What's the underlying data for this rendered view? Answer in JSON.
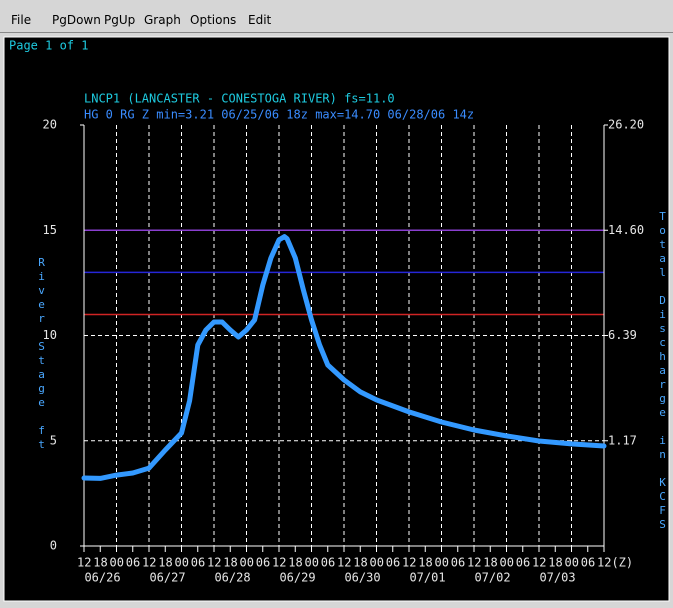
{
  "menu": [
    "File",
    "PgDown",
    "PgUp",
    "Graph",
    "Options",
    "Edit"
  ],
  "page_label": "Page 1 of 1",
  "chart_data": {
    "type": "line",
    "title": "LNCP1 (LANCASTER - CONESTOGA RIVER) fs=11.0",
    "subtitle": "HG 0 RG Z min=3.21 06/25/06 18z max=14.70 06/28/06 14z",
    "ylabel": "River Stage ft",
    "y2label": "Total Discharge in KCFS",
    "ylim": [
      0,
      20
    ],
    "yticks": [
      0,
      5,
      10,
      15,
      20
    ],
    "y2ticks": [
      {
        "value": 1.17,
        "label": "1.17"
      },
      {
        "value": 6.39,
        "label": "6.39"
      },
      {
        "value": 14.6,
        "label": "14.60"
      },
      {
        "value": 26.2,
        "label": "26.20"
      }
    ],
    "xlim": [
      "06/25 12",
      "07/03 12"
    ],
    "xticks": [
      {
        "value": "06/25 12",
        "label": "12"
      },
      {
        "value": "06/25 18",
        "label": "18"
      },
      {
        "value": "06/26 00",
        "label": "00"
      },
      {
        "value": "06/26 06",
        "label": "06"
      },
      {
        "value": "06/26 12",
        "label": "12"
      },
      {
        "value": "06/26 18",
        "label": "18"
      },
      {
        "value": "06/27 00",
        "label": "00"
      },
      {
        "value": "06/27 06",
        "label": "06"
      },
      {
        "value": "06/27 12",
        "label": "12"
      },
      {
        "value": "06/27 18",
        "label": "18"
      },
      {
        "value": "06/28 00",
        "label": "00"
      },
      {
        "value": "06/28 06",
        "label": "06"
      },
      {
        "value": "06/28 12",
        "label": "12"
      },
      {
        "value": "06/28 18",
        "label": "18"
      },
      {
        "value": "06/29 00",
        "label": "00"
      },
      {
        "value": "06/29 06",
        "label": "06"
      },
      {
        "value": "06/29 12",
        "label": "12"
      },
      {
        "value": "06/29 18",
        "label": "18"
      },
      {
        "value": "06/30 00",
        "label": "00"
      },
      {
        "value": "06/30 06",
        "label": "06"
      },
      {
        "value": "06/30 12",
        "label": "12"
      },
      {
        "value": "06/30 18",
        "label": "18"
      },
      {
        "value": "07/01 00",
        "label": "00"
      },
      {
        "value": "07/01 06",
        "label": "06"
      },
      {
        "value": "07/01 12",
        "label": "12"
      },
      {
        "value": "07/01 18",
        "label": "18"
      },
      {
        "value": "07/02 00",
        "label": "00"
      },
      {
        "value": "07/02 06",
        "label": "06"
      },
      {
        "value": "07/02 12",
        "label": "12"
      },
      {
        "value": "07/02 18",
        "label": "18"
      },
      {
        "value": "07/03 00",
        "label": "00"
      },
      {
        "value": "07/03 06",
        "label": "06"
      },
      {
        "value": "07/03 12",
        "label": "12(Z)"
      }
    ],
    "x_date_labels": [
      {
        "value": "06/26 00",
        "label": "06/26"
      },
      {
        "value": "06/27 00",
        "label": "06/27"
      },
      {
        "value": "06/28 00",
        "label": "06/28"
      },
      {
        "value": "06/29 00",
        "label": "06/29"
      },
      {
        "value": "06/30 00",
        "label": "06/30"
      },
      {
        "value": "07/01 00",
        "label": "07/01"
      },
      {
        "value": "07/02 00",
        "label": "07/02"
      },
      {
        "value": "07/03 00",
        "label": "07/03"
      }
    ],
    "thresholds": [
      {
        "value": 15,
        "color": "#8a3fd0"
      },
      {
        "value": 13,
        "color": "#2626d8"
      },
      {
        "value": 11,
        "color": "#d02424"
      }
    ],
    "grid": true,
    "series": [
      {
        "color": "#3399ff",
        "x": [
          "06/25 12",
          "06/25 18",
          "06/26 00",
          "06/26 06",
          "06/26 12",
          "06/26 18",
          "06/27 00",
          "06/27 03",
          "06/27 06",
          "06/27 09",
          "06/27 12",
          "06/27 15",
          "06/27 18",
          "06/27 21",
          "06/28 00",
          "06/28 03",
          "06/28 06",
          "06/28 09",
          "06/28 12",
          "06/28 14",
          "06/28 15",
          "06/28 18",
          "06/28 21",
          "06/29 00",
          "06/29 03",
          "06/29 06",
          "06/29 12",
          "06/29 18",
          "06/30 00",
          "06/30 12",
          "07/01 00",
          "07/01 12",
          "07/02 00",
          "07/02 12",
          "07/03 00",
          "07/03 12"
        ],
        "values": [
          3.23,
          3.21,
          3.37,
          3.47,
          3.7,
          4.56,
          5.37,
          6.9,
          9.55,
          10.26,
          10.64,
          10.64,
          10.26,
          9.93,
          10.26,
          10.74,
          12.4,
          13.68,
          14.54,
          14.7,
          14.6,
          13.68,
          12.16,
          10.74,
          9.55,
          8.6,
          7.89,
          7.32,
          6.94,
          6.37,
          5.89,
          5.51,
          5.23,
          4.99,
          4.85,
          4.75
        ]
      }
    ]
  }
}
